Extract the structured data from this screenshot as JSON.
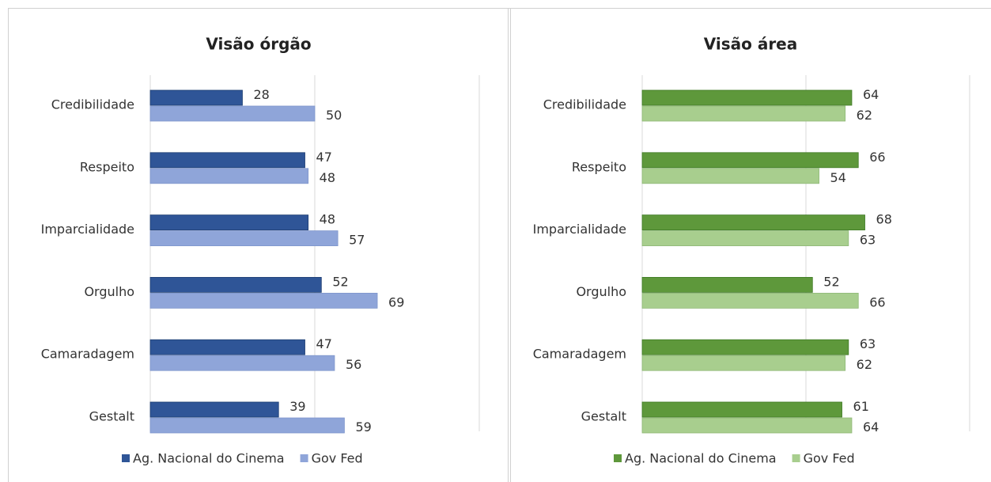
{
  "chart_data": [
    {
      "type": "bar",
      "orientation": "horizontal",
      "title": "Visão órgão",
      "categories": [
        "Credibilidade",
        "Respeito",
        "Imparcialidade",
        "Orgulho",
        "Camaradagem",
        "Gestalt"
      ],
      "series": [
        {
          "name": "Ag. Nacional do Cinema",
          "color": "#2f5597",
          "values": [
            28,
            47,
            48,
            52,
            47,
            39
          ]
        },
        {
          "name": "Gov Fed",
          "color": "#8fa5d9",
          "values": [
            50,
            48,
            57,
            69,
            56,
            59
          ]
        }
      ],
      "xlim": [
        0,
        100
      ],
      "xticks": [
        0,
        50,
        100
      ],
      "grid": true,
      "legend": "bottom"
    },
    {
      "type": "bar",
      "orientation": "horizontal",
      "title": "Visão área",
      "categories": [
        "Credibilidade",
        "Respeito",
        "Imparcialidade",
        "Orgulho",
        "Camaradagem",
        "Gestalt"
      ],
      "series": [
        {
          "name": "Ag. Nacional do Cinema",
          "color": "#5e983b",
          "values": [
            64,
            66,
            68,
            52,
            63,
            61
          ]
        },
        {
          "name": "Gov Fed",
          "color": "#a8ce8e",
          "values": [
            62,
            54,
            63,
            66,
            62,
            64
          ]
        }
      ],
      "xlim": [
        0,
        100
      ],
      "xticks": [
        0,
        50,
        100
      ],
      "grid": true,
      "legend": "bottom"
    }
  ]
}
